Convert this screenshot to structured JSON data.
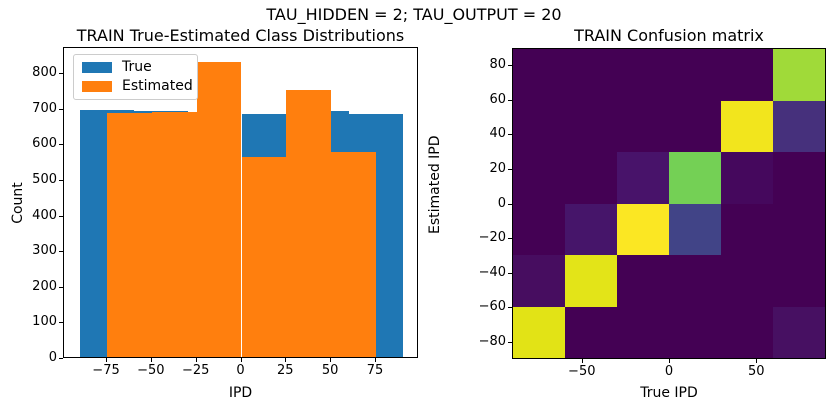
{
  "figure": {
    "suptitle": "TAU_HIDDEN = 2; TAU_OUTPUT = 20",
    "background": "#ffffff"
  },
  "chart_data": [
    {
      "type": "bar",
      "subtype": "overlapping-histograms",
      "title": "TRAIN True-Estimated Class Distributions",
      "xlabel": "IPD",
      "ylabel": "Count",
      "xlim": [
        -99,
        99
      ],
      "ylim": [
        0,
        874
      ],
      "grid": false,
      "x_ticks": [
        -75,
        -50,
        -25,
        0,
        25,
        50,
        75
      ],
      "y_ticks": [
        0,
        100,
        200,
        300,
        400,
        500,
        600,
        700,
        800
      ],
      "legend": {
        "position": "upper left",
        "items": [
          {
            "label": "True",
            "color": "#1f77b4"
          },
          {
            "label": "Estimated",
            "color": "#ff7f0e"
          }
        ]
      },
      "series": [
        {
          "name": "True",
          "color": "#1f77b4",
          "bin_edges": [
            -90,
            -60,
            -30,
            0,
            30,
            60,
            90
          ],
          "counts": [
            693,
            690,
            683,
            683,
            690,
            683
          ]
        },
        {
          "name": "Estimated",
          "color": "#ff7f0e",
          "bin_edges": [
            -75,
            -50,
            -25,
            0,
            25,
            50,
            75
          ],
          "counts": [
            685,
            689,
            828,
            562,
            751,
            577
          ]
        }
      ]
    },
    {
      "type": "heatmap",
      "title": "TRAIN Confusion matrix",
      "xlabel": "True IPD",
      "ylabel": "Estimated IPD",
      "colormap": "viridis",
      "n_classes": 6,
      "extent": [
        -90,
        90,
        -90,
        90
      ],
      "x_ticks": [
        -50,
        0,
        50
      ],
      "y_ticks": [
        80,
        60,
        40,
        20,
        0,
        -20,
        -40,
        -60,
        -80
      ],
      "rows_top_to_bottom_est": [
        [
          60,
          90
        ],
        [
          30,
          60
        ],
        [
          0,
          30
        ],
        [
          -30,
          0
        ],
        [
          -60,
          -30
        ],
        [
          -90,
          -60
        ]
      ],
      "cols_left_to_right_true": [
        [
          -90,
          -60
        ],
        [
          -60,
          -30
        ],
        [
          -30,
          0
        ],
        [
          0,
          30
        ],
        [
          30,
          60
        ],
        [
          60,
          90
        ]
      ],
      "cell_values_normalized": [
        [
          0,
          0,
          0,
          0,
          0,
          0.78
        ],
        [
          0,
          0,
          0,
          0,
          0.97,
          0.2
        ],
        [
          0,
          0,
          0.04,
          0.7,
          0.01,
          0
        ],
        [
          0,
          0.06,
          1.0,
          0.35,
          0,
          0
        ],
        [
          0.02,
          0.95,
          0,
          0,
          0,
          0
        ],
        [
          0.92,
          0,
          0,
          0,
          0,
          0.03
        ]
      ],
      "cell_colors": [
        [
          "#440154",
          "#440154",
          "#440154",
          "#440154",
          "#440154",
          "#a0da39"
        ],
        [
          "#440154",
          "#440154",
          "#440154",
          "#440154",
          "#f2e51d",
          "#46307c"
        ],
        [
          "#440154",
          "#440154",
          "#48136a",
          "#74d055",
          "#45085d",
          "#440154"
        ],
        [
          "#440154",
          "#46156a",
          "#fbe723",
          "#414487",
          "#440154",
          "#440154"
        ],
        [
          "#470d60",
          "#e3e418",
          "#440154",
          "#440154",
          "#440154",
          "#440154"
        ],
        [
          "#e2e316",
          "#440154",
          "#440154",
          "#440154",
          "#440154",
          "#471062"
        ]
      ]
    }
  ]
}
